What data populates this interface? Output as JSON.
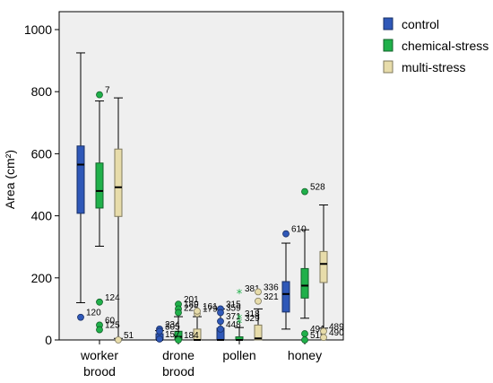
{
  "chart_data": {
    "type": "boxplot",
    "ylabel": "Area (cm²)",
    "ylim": [
      0,
      1000
    ],
    "yticks": [
      0,
      200,
      400,
      600,
      800,
      1000
    ],
    "categories": [
      {
        "label": "worker",
        "label2": "brood"
      },
      {
        "label": "drone",
        "label2": "brood"
      },
      {
        "label": "pollen",
        "label2": ""
      },
      {
        "label": "honey",
        "label2": ""
      }
    ],
    "series": [
      {
        "name": "control",
        "color": "#2f58b8",
        "boxes": [
          {
            "min": 120,
            "q1": 408,
            "median": 565,
            "q3": 625,
            "max": 925
          },
          {
            "min": 0,
            "q1": 0,
            "median": 0,
            "q3": 20,
            "max": 30
          },
          {
            "min": 0,
            "q1": 0,
            "median": 0,
            "q3": 38,
            "max": 100
          },
          {
            "min": 35,
            "q1": 90,
            "median": 148,
            "q3": 188,
            "max": 312
          }
        ]
      },
      {
        "name": "chemical-stress",
        "color": "#20b04a",
        "boxes": [
          {
            "min": 302,
            "q1": 425,
            "median": 480,
            "q3": 570,
            "max": 770
          },
          {
            "min": 0,
            "q1": 0,
            "median": 10,
            "q3": 28,
            "max": 75
          },
          {
            "min": 0,
            "q1": 0,
            "median": 0,
            "q3": 10,
            "max": 40
          },
          {
            "min": 70,
            "q1": 135,
            "median": 175,
            "q3": 230,
            "max": 355
          }
        ]
      },
      {
        "name": "multi-stress",
        "color": "#e7dcaa",
        "boxes": [
          {
            "min": 5,
            "q1": 398,
            "median": 492,
            "q3": 615,
            "max": 780
          },
          {
            "min": 0,
            "q1": 0,
            "median": 0,
            "q3": 35,
            "max": 75
          },
          {
            "min": 0,
            "q1": 0,
            "median": 5,
            "q3": 48,
            "max": 100
          },
          {
            "min": 38,
            "q1": 185,
            "median": 245,
            "q3": 285,
            "max": 435
          }
        ]
      }
    ],
    "outliers": [
      {
        "series": 0,
        "cat": 0,
        "value": 73,
        "label": "120",
        "marker": "circle"
      },
      {
        "series": 1,
        "cat": 0,
        "value": 790,
        "label": "7",
        "marker": "circle"
      },
      {
        "series": 1,
        "cat": 0,
        "value": 122,
        "label": "124",
        "marker": "circle"
      },
      {
        "series": 1,
        "cat": 0,
        "value": 48,
        "label": "60",
        "marker": "circle"
      },
      {
        "series": 1,
        "cat": 0,
        "value": 33,
        "label": "125",
        "marker": "circle"
      },
      {
        "series": 2,
        "cat": 0,
        "value": 0,
        "label": "51",
        "marker": "circle"
      },
      {
        "series": 0,
        "cat": 1,
        "value": 35,
        "label": "234",
        "marker": "circle"
      },
      {
        "series": 0,
        "cat": 1,
        "value": 28,
        "label": "305",
        "marker": "circle"
      },
      {
        "series": 0,
        "cat": 1,
        "value": 3,
        "label": "157",
        "marker": "circle"
      },
      {
        "series": 1,
        "cat": 1,
        "value": 115,
        "label": "201",
        "marker": "circle"
      },
      {
        "series": 1,
        "cat": 1,
        "value": 100,
        "label": "189",
        "marker": "circle"
      },
      {
        "series": 1,
        "cat": 1,
        "value": 88,
        "label": "225",
        "marker": "circle"
      },
      {
        "series": 1,
        "cat": 1,
        "value": 0,
        "label": "184",
        "marker": "circle"
      },
      {
        "series": 2,
        "cat": 1,
        "value": 85,
        "label": "179",
        "marker": "circle"
      },
      {
        "series": 2,
        "cat": 1,
        "value": 93,
        "label": "161",
        "marker": "circle"
      },
      {
        "series": 0,
        "cat": 2,
        "value": 100,
        "label": "315",
        "marker": "circle"
      },
      {
        "series": 0,
        "cat": 2,
        "value": 88,
        "label": "359",
        "marker": "circle"
      },
      {
        "series": 0,
        "cat": 2,
        "value": 60,
        "label": "371",
        "marker": "circle"
      },
      {
        "series": 0,
        "cat": 2,
        "value": 35,
        "label": "448",
        "marker": "circle"
      },
      {
        "series": 1,
        "cat": 2,
        "value": 150,
        "label": "381",
        "marker": "star"
      },
      {
        "series": 1,
        "cat": 2,
        "value": 70,
        "label": "318",
        "marker": "star"
      },
      {
        "series": 1,
        "cat": 2,
        "value": 55,
        "label": "329",
        "marker": "star"
      },
      {
        "series": 2,
        "cat": 2,
        "value": 155,
        "label": "336",
        "marker": "circle"
      },
      {
        "series": 2,
        "cat": 2,
        "value": 125,
        "label": "321",
        "marker": "circle"
      },
      {
        "series": 0,
        "cat": 3,
        "value": 342,
        "label": "610",
        "marker": "circle"
      },
      {
        "series": 1,
        "cat": 3,
        "value": 478,
        "label": "528",
        "marker": "circle"
      },
      {
        "series": 1,
        "cat": 3,
        "value": 20,
        "label": "491",
        "marker": "circle"
      },
      {
        "series": 1,
        "cat": 3,
        "value": 0,
        "label": "519",
        "marker": "circle"
      },
      {
        "series": 2,
        "cat": 3,
        "value": 28,
        "label": "489",
        "marker": "circle"
      },
      {
        "series": 2,
        "cat": 3,
        "value": 8,
        "label": "490",
        "marker": "circle"
      }
    ],
    "legend": {
      "position": "right"
    }
  }
}
